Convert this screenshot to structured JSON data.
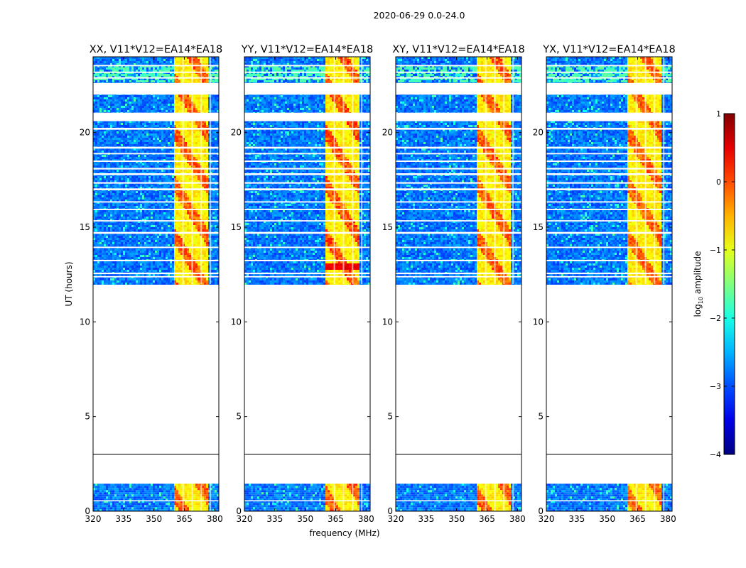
{
  "figure_title": "2020-06-29 0.0-24.0",
  "chart_data": {
    "type": "heatmap",
    "title": "2020-06-29 0.0-24.0",
    "xlabel": "frequency (MHz)",
    "ylabel": "UT (hours)",
    "xlim": [
      320,
      382
    ],
    "ylim": [
      0,
      24
    ],
    "x_ticks": [
      320,
      335,
      350,
      365,
      380
    ],
    "y_ticks": [
      0,
      5,
      10,
      15,
      20
    ],
    "panels": [
      {
        "title": "XX, V11*V12=EA14*EA18",
        "hot_scale": 0.85
      },
      {
        "title": "YY, V11*V12=EA14*EA18",
        "hot_scale": 1.0
      },
      {
        "title": "XY, V11*V12=EA14*EA18",
        "hot_scale": 0.85
      },
      {
        "title": "YX, V11*V12=EA14*EA18",
        "hot_scale": 0.8
      }
    ],
    "data_time_blocks": [
      [
        0,
        1.45
      ],
      [
        12.0,
        24.0
      ]
    ],
    "boundary_line_ut": 3.0,
    "band_freq_range": [
      360,
      377
    ],
    "band_columns": [
      [
        360,
        364
      ],
      [
        364.5,
        368.5
      ],
      [
        369,
        373
      ],
      [
        373.5,
        377.5
      ]
    ],
    "gap_intervals_ut": [
      [
        0.52,
        0.58
      ],
      [
        12.35,
        12.42
      ],
      [
        12.52,
        12.6
      ],
      [
        13.2,
        13.28
      ],
      [
        13.9,
        13.97
      ],
      [
        14.65,
        14.75
      ],
      [
        15.3,
        15.37
      ],
      [
        15.9,
        15.97
      ],
      [
        16.3,
        16.37
      ],
      [
        16.95,
        17.05
      ],
      [
        17.3,
        17.38
      ],
      [
        17.75,
        17.85
      ],
      [
        18.05,
        18.13
      ],
      [
        18.45,
        18.52
      ],
      [
        18.85,
        18.92
      ],
      [
        19.15,
        19.25
      ],
      [
        20.15,
        20.25
      ],
      [
        20.6,
        21.05
      ],
      [
        22.0,
        22.62
      ],
      [
        22.85,
        22.92
      ],
      [
        23.15,
        23.22
      ],
      [
        23.5,
        23.57
      ]
    ],
    "colorbar": {
      "label_prefix": "log",
      "label_sub": "10",
      "label_suffix": " amplitude",
      "range": [
        -4,
        1
      ],
      "ticks": [
        1,
        0,
        -1,
        -2,
        -3,
        -4
      ],
      "tick_labels": [
        "1",
        "0",
        "−1",
        "−2",
        "−3",
        "−4"
      ],
      "colormap": "jet"
    }
  }
}
